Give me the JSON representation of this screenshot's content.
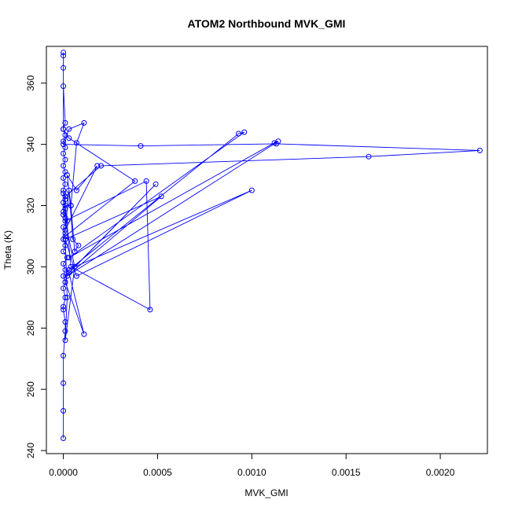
{
  "chart_data": {
    "type": "line",
    "title": "ATOM2 Northbound MVK_GMI",
    "xlabel": "MVK_GMI",
    "ylabel": "Theta (K)",
    "xlim": [
      -9e-05,
      0.00225
    ],
    "ylim": [
      239,
      372
    ],
    "xticks": [
      0,
      0.0005,
      0.001,
      0.0015,
      0.002
    ],
    "xtick_labels": [
      "0.0000",
      "0.0005",
      "0.0010",
      "0.0015",
      "0.0020"
    ],
    "yticks": [
      240,
      260,
      280,
      300,
      320,
      340,
      360
    ],
    "ytick_labels": [
      "240",
      "260",
      "280",
      "300",
      "320",
      "340",
      "360"
    ],
    "grid": false,
    "marker": "open-circle",
    "colors": {
      "series": "#0000ff",
      "axis": "#000000"
    },
    "series": [
      {
        "points": [
          [
            0.0,
            244
          ],
          [
            0.0,
            253
          ],
          [
            0.0,
            262
          ],
          [
            0.0,
            271
          ],
          [
            1e-05,
            279
          ],
          [
            1e-05,
            282
          ],
          [
            0.0,
            286
          ],
          [
            0.0,
            287
          ],
          [
            1e-05,
            290
          ],
          [
            0.0,
            293
          ],
          [
            1e-05,
            295
          ],
          [
            0.0,
            297
          ],
          [
            1e-05,
            299
          ],
          [
            0.0,
            301
          ],
          [
            2e-05,
            303
          ],
          [
            0.0,
            305
          ],
          [
            1e-05,
            307
          ],
          [
            0.0,
            309
          ],
          [
            1e-05,
            311
          ],
          [
            0.0,
            313
          ],
          [
            2e-05,
            315
          ],
          [
            0.0,
            317
          ],
          [
            1e-05,
            319
          ],
          [
            0.0,
            321
          ],
          [
            1e-05,
            323
          ],
          [
            0.0,
            325
          ],
          [
            1e-05,
            327
          ],
          [
            0.0,
            329
          ],
          [
            1e-05,
            331
          ],
          [
            0.0,
            333
          ],
          [
            1e-05,
            335
          ],
          [
            0.0,
            337
          ],
          [
            1e-05,
            339
          ],
          [
            0.0,
            341
          ],
          [
            1e-05,
            343
          ],
          [
            0.0,
            345
          ],
          [
            1e-05,
            347
          ],
          [
            0.0,
            359
          ],
          [
            0.0,
            369
          ],
          [
            0.0,
            370
          ],
          [
            0.0,
            365
          ],
          [
            0.0,
            345
          ],
          [
            3e-05,
            342
          ],
          [
            0.00038,
            328
          ],
          [
            1e-05,
            310
          ],
          [
            2e-05,
            290
          ],
          [
            1e-05,
            276
          ],
          [
            6e-05,
            300
          ],
          [
            0.00049,
            327
          ],
          [
            3e-05,
            298
          ],
          [
            0.00011,
            278
          ],
          [
            1e-05,
            295
          ],
          [
            3e-05,
            299
          ],
          [
            0.00093,
            343.5
          ],
          [
            0.00096,
            344
          ],
          [
            3e-05,
            303
          ],
          [
            0.00112,
            340.5
          ],
          [
            0.00114,
            341
          ],
          [
            2e-05,
            297
          ],
          [
            0.00052,
            323
          ],
          [
            1e-05,
            309
          ],
          [
            7e-05,
            297
          ],
          [
            0.001,
            325
          ],
          [
            6e-05,
            300
          ],
          [
            1e-05,
            315
          ],
          [
            0.00044,
            328
          ],
          [
            0.00046,
            286
          ],
          [
            4e-05,
            300
          ],
          [
            1e-05,
            320
          ],
          [
            4e-05,
            320
          ],
          [
            6e-05,
            305
          ],
          [
            8e-05,
            307
          ],
          [
            5e-05,
            309
          ],
          [
            3e-05,
            325
          ],
          [
            1e-05,
            312
          ],
          [
            0.00018,
            333
          ],
          [
            7e-05,
            325
          ],
          [
            2e-05,
            330
          ],
          [
            4e-05,
            320
          ],
          [
            7e-05,
            340.5
          ],
          [
            0.00011,
            347
          ],
          [
            3e-05,
            345
          ],
          [
            0.0,
            340
          ],
          [
            0.00041,
            339.5
          ],
          [
            0.00113,
            340.2
          ],
          [
            0.00221,
            338
          ],
          [
            0.00162,
            336
          ],
          [
            0.0002,
            333
          ],
          [
            1e-05,
            323
          ],
          [
            1e-05,
            316
          ],
          [
            0.0,
            318
          ],
          [
            1e-05,
            322
          ],
          [
            0.0,
            324
          ]
        ]
      }
    ]
  }
}
